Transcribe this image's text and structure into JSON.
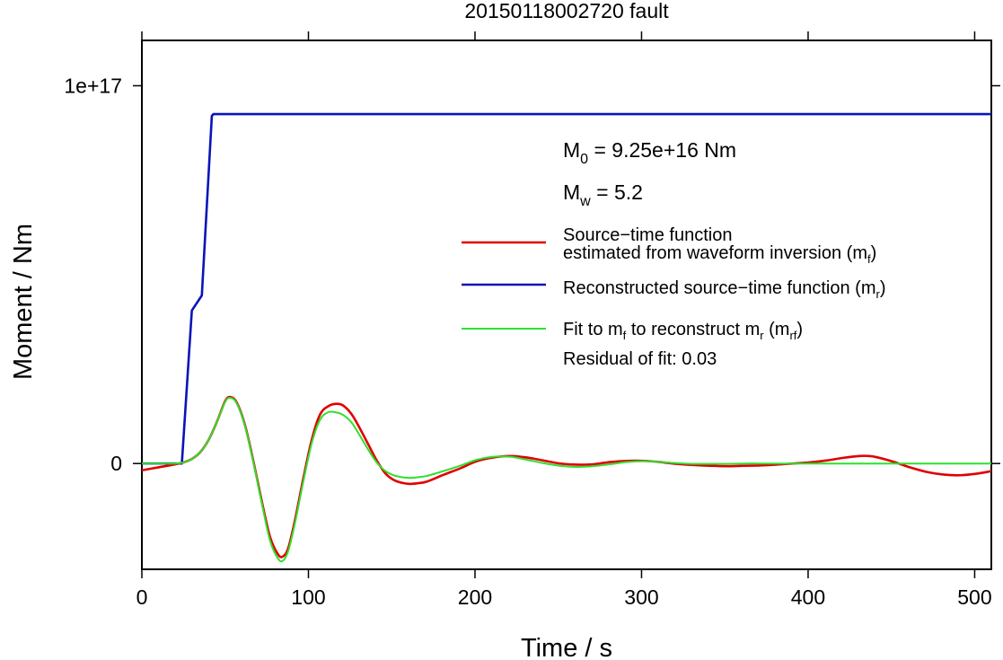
{
  "chart_data": {
    "type": "line",
    "title": "20150118002720 fault",
    "xlabel": "Time / s",
    "ylabel": "Moment / Nm",
    "xlim": [
      0,
      510
    ],
    "ylim": [
      -2.8e+16,
      1.12e+17
    ],
    "x_ticks": [
      0,
      100,
      200,
      300,
      400,
      500
    ],
    "x_tick_labels": [
      "0",
      "100",
      "200",
      "300",
      "400",
      "500"
    ],
    "y_ticks": [
      0,
      1e+17
    ],
    "y_tick_labels": [
      "0",
      "1e+17"
    ],
    "grid": false,
    "legend_position": "upper right",
    "annotations": {
      "m0": "M0 = 9.25e+16 Nm",
      "mw": "Mw = 5.2",
      "residual": "Residual of fit: 0.03"
    },
    "series": [
      {
        "name": "Source−time function estimated from waveform inversion (mf)",
        "color": "#e00000",
        "x": [
          0,
          10,
          20,
          25,
          30,
          35,
          40,
          45,
          50,
          53,
          57,
          62,
          67,
          72,
          77,
          82,
          85,
          88,
          92,
          97,
          102,
          107,
          112,
          117,
          121,
          126,
          131,
          136,
          141,
          146,
          151,
          156,
          161,
          166,
          171,
          181,
          191,
          201,
          211,
          221,
          231,
          241,
          251,
          261,
          271,
          281,
          291,
          301,
          311,
          321,
          331,
          341,
          351,
          361,
          371,
          381,
          391,
          401,
          411,
          421,
          431,
          436,
          441,
          451,
          461,
          471,
          481,
          491,
          501,
          510
        ],
        "y": [
          -1800000000000000.0,
          -1000000000000000.0,
          -200000000000000.0,
          300000000000000.0,
          1200000000000000.0,
          3000000000000000.0,
          6200000000000000.0,
          1.1e+16,
          1.65e+16,
          1.76e+16,
          1.61e+16,
          1e+16,
          500000000000000.0,
          -1e+16,
          -1.95e+16,
          -2.42e+16,
          -2.45e+16,
          -2.22e+16,
          -1.48e+16,
          -3800000000000000.0,
          6300000000000000.0,
          1.3e+16,
          1.52e+16,
          1.58e+16,
          1.53e+16,
          1.3e+16,
          9200000000000000.0,
          5000000000000000.0,
          800000000000000.0,
          -2500000000000000.0,
          -4300000000000000.0,
          -5100000000000000.0,
          -5400000000000000.0,
          -5200000000000000.0,
          -4800000000000000.0,
          -3000000000000000.0,
          -1300000000000000.0,
          600000000000000.0,
          1600000000000000.0,
          2000000000000000.0,
          1600000000000000.0,
          800000000000000.0,
          0.0,
          -300000000000000.0,
          -200000000000000.0,
          400000000000000.0,
          700000000000000.0,
          700000000000000.0,
          400000000000000.0,
          -100000000000000.0,
          -400000000000000.0,
          -600000000000000.0,
          -700000000000000.0,
          -600000000000000.0,
          -500000000000000.0,
          -300000000000000.0,
          0.0,
          300000000000000.0,
          800000000000000.0,
          1500000000000000.0,
          2000000000000000.0,
          2000000000000000.0,
          1700000000000000.0,
          500000000000000.0,
          -1000000000000000.0,
          -2200000000000000.0,
          -2900000000000000.0,
          -3100000000000000.0,
          -2700000000000000.0,
          -2000000000000000.0
        ]
      },
      {
        "name": "Reconstructed source−time function (mr)",
        "color": "#0a14b8",
        "x": [
          0,
          24,
          30,
          36,
          42,
          43,
          510
        ],
        "y": [
          0,
          0,
          4.05e+16,
          4.45e+16,
          9.2e+16,
          9.25e+16,
          9.25e+16
        ]
      },
      {
        "name": "Fit to mf to reconstruct mr (mrf)",
        "color": "#2ee02e",
        "x": [
          0,
          10,
          20,
          25,
          30,
          35,
          40,
          45,
          50,
          53,
          57,
          62,
          67,
          72,
          77,
          82,
          85,
          88,
          92,
          97,
          102,
          107,
          112,
          117,
          121,
          126,
          131,
          136,
          141,
          146,
          151,
          156,
          161,
          166,
          171,
          181,
          191,
          201,
          211,
          221,
          231,
          241,
          251,
          261,
          271,
          281,
          291,
          301,
          311,
          321,
          331,
          341,
          351,
          361,
          371,
          381,
          391,
          401,
          411,
          421,
          431,
          441,
          451,
          461,
          471,
          481,
          491,
          501,
          510
        ],
        "y": [
          0,
          0,
          0,
          300000000000000.0,
          1200000000000000.0,
          3000000000000000.0,
          6200000000000000.0,
          1.1e+16,
          1.63e+16,
          1.74e+16,
          1.59e+16,
          9800000000000000.0,
          200000000000000.0,
          -1.05e+16,
          -2.05e+16,
          -2.53e+16,
          -2.56e+16,
          -2.3e+16,
          -1.56e+16,
          -4600000000000000.0,
          5400000000000000.0,
          1.16e+16,
          1.36e+16,
          1.35e+16,
          1.28e+16,
          1.08e+16,
          7300000000000000.0,
          3600000000000000.0,
          300000000000000.0,
          -1900000000000000.0,
          -3100000000000000.0,
          -3600000000000000.0,
          -3800000000000000.0,
          -3600000000000000.0,
          -3300000000000000.0,
          -2000000000000000.0,
          -600000000000000.0,
          1000000000000000.0,
          1800000000000000.0,
          1800000000000000.0,
          1000000000000000.0,
          100000000000000.0,
          -600000000000000.0,
          -900000000000000.0,
          -700000000000000.0,
          -200000000000000.0,
          400000000000000.0,
          600000000000000.0,
          400000000000000.0,
          100000000000000.0,
          -100000000000000.0,
          -100000000000000.0,
          -100000000000000.0,
          0,
          0,
          0,
          0,
          0,
          0,
          0,
          0,
          0,
          0,
          0,
          0,
          0,
          0,
          0,
          0
        ]
      }
    ]
  },
  "legend": {
    "entries": [
      {
        "line1": "Source−time function",
        "line2_main": "estimated from waveform inversion (m",
        "line2_sub": "f",
        "line2_end": ")",
        "color": "#e00000"
      },
      {
        "main": "Reconstructed source−time function (m",
        "sub": "r",
        "end": ")",
        "color": "#0a14b8"
      },
      {
        "a": "Fit to m",
        "sub1": "f",
        "b": " to reconstruct m",
        "sub2": "r",
        "c": " (m",
        "sub3": "rf",
        "d": ")",
        "color": "#2ee02e"
      }
    ]
  },
  "annot": {
    "m0_base": "M",
    "m0_sub": "0",
    "m0_rest": " = 9.25e+16 Nm",
    "mw_base": "M",
    "mw_sub": "w",
    "mw_rest": " = 5.2",
    "residual": "Residual of fit: 0.03"
  }
}
